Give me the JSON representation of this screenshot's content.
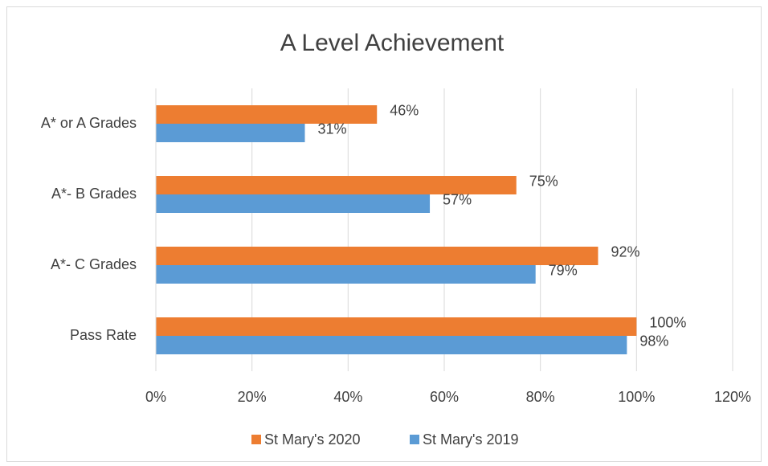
{
  "chart_data": {
    "type": "hbar",
    "title": "A Level Achievement",
    "categories": [
      "A* or A Grades",
      "A*- B Grades",
      "A*- C Grades",
      "Pass Rate"
    ],
    "series": [
      {
        "name": "St Mary's 2020",
        "color": "#ED7D31",
        "values": [
          46,
          75,
          92,
          100
        ],
        "value_labels": [
          "46%",
          "75%",
          "92%",
          "100%"
        ]
      },
      {
        "name": "St Mary's 2019",
        "color": "#5B9BD5",
        "values": [
          31,
          57,
          79,
          98
        ],
        "value_labels": [
          "31%",
          "57%",
          "79%",
          "98%"
        ]
      }
    ],
    "xlim": [
      0,
      120
    ],
    "xticks": [
      {
        "value": 0,
        "label": "0%"
      },
      {
        "value": 20,
        "label": "20%"
      },
      {
        "value": 40,
        "label": "40%"
      },
      {
        "value": 60,
        "label": "60%"
      },
      {
        "value": 80,
        "label": "80%"
      },
      {
        "value": 100,
        "label": "100%"
      },
      {
        "value": 120,
        "label": "120%"
      }
    ],
    "grid": true,
    "legend": "bottom"
  }
}
